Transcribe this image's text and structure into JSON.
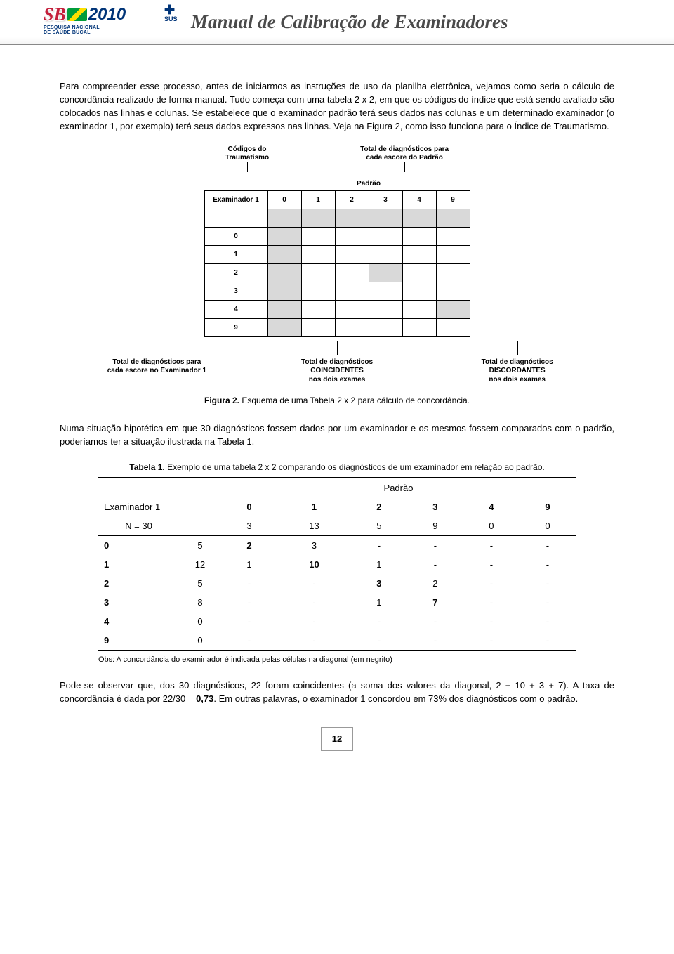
{
  "banner": {
    "logo_sb": "SB",
    "logo_brasil": "BRASIL",
    "logo_year": "2010",
    "logo_subtitle": "PESQUISA NACIONAL\nDE SAÚDE BUCAL",
    "sus": "SUS",
    "title": "Manual de Calibração de Examinadores"
  },
  "para1": "Para compreender esse processo, antes de iniciarmos as instruções de uso da planilha eletrônica, vejamos como seria o cálculo de concordância realizado de forma manual. Tudo começa com uma tabela 2 x 2, em que os códigos do índice que está sendo avaliado são colocados nas linhas e colunas. Se estabelece que o examinador padrão terá seus dados nas colunas e um determinado examinador (o examinador 1, por exemplo) terá seus dados expressos nas linhas. Veja na Figura 2, como isso funciona para o Índice de Traumatismo.",
  "fig2": {
    "label_top_left": "Códigos do\nTraumatismo",
    "label_top_right": "Total de diagnósticos para\ncada escore do Padrão",
    "padrao": "Padrão",
    "examiner_label": "Examinador 1",
    "codes": [
      "0",
      "1",
      "2",
      "3",
      "4",
      "9"
    ],
    "label_bot_1": "Total de diagnósticos para\ncada escore no Examinador 1",
    "label_bot_2": "Total de diagnósticos\nCOINCIDENTES\nnos dois exames",
    "label_bot_3": "Total de diagnósticos\nDISCORDANTES\nnos dois exames",
    "caption_bold": "Figura 2.",
    "caption_text": " Esquema de uma Tabela 2 x 2 para cálculo de concordância."
  },
  "para2": "Numa situação hipotética em que 30 diagnósticos fossem dados por um examinador e os mesmos fossem comparados com o padrão, poderíamos ter a situação ilustrada na Tabela 1.",
  "table1": {
    "caption_bold": "Tabela 1.",
    "caption_text": " Exemplo de uma tabela 2 x 2 comparando os diagnósticos de um examinador em relação ao padrão.",
    "padrao": "Padrão",
    "examiner_label": "Examinador 1",
    "n_label": "N =  30",
    "columns": [
      "0",
      "1",
      "2",
      "3",
      "4",
      "9"
    ],
    "n_totals": [
      "3",
      "13",
      "5",
      "9",
      "0",
      "0"
    ],
    "rows": [
      {
        "code": "0",
        "total": "5",
        "cells": [
          "2",
          "3",
          "-",
          "-",
          "-",
          "-"
        ],
        "bold_idx": 0
      },
      {
        "code": "1",
        "total": "12",
        "cells": [
          "1",
          "10",
          "1",
          "-",
          "-",
          "-"
        ],
        "bold_idx": 1
      },
      {
        "code": "2",
        "total": "5",
        "cells": [
          "-",
          "-",
          "3",
          "2",
          "-",
          "-"
        ],
        "bold_idx": 2
      },
      {
        "code": "3",
        "total": "8",
        "cells": [
          "-",
          "-",
          "1",
          "7",
          "-",
          "-"
        ],
        "bold_idx": 3
      },
      {
        "code": "4",
        "total": "0",
        "cells": [
          "-",
          "-",
          "-",
          "-",
          "-",
          "-"
        ],
        "bold_idx": -1
      },
      {
        "code": "9",
        "total": "0",
        "cells": [
          "-",
          "-",
          "-",
          "-",
          "-",
          "-"
        ],
        "bold_idx": -1
      }
    ],
    "obs": "Obs: A concordância do examinador é indicada pelas células na diagonal (em negrito)"
  },
  "para3_a": "Pode-se observar que, dos 30 diagnósticos, 22 foram coincidentes (a soma dos valores da diagonal, 2 + 10 + 3 + 7). A taxa de concordância é dada por 22/30 = ",
  "para3_bold": "0,73",
  "para3_b": ". Em outras palavras, o examinador 1 concordou em 73% dos diagnósticos com o padrão.",
  "page_number": "12"
}
